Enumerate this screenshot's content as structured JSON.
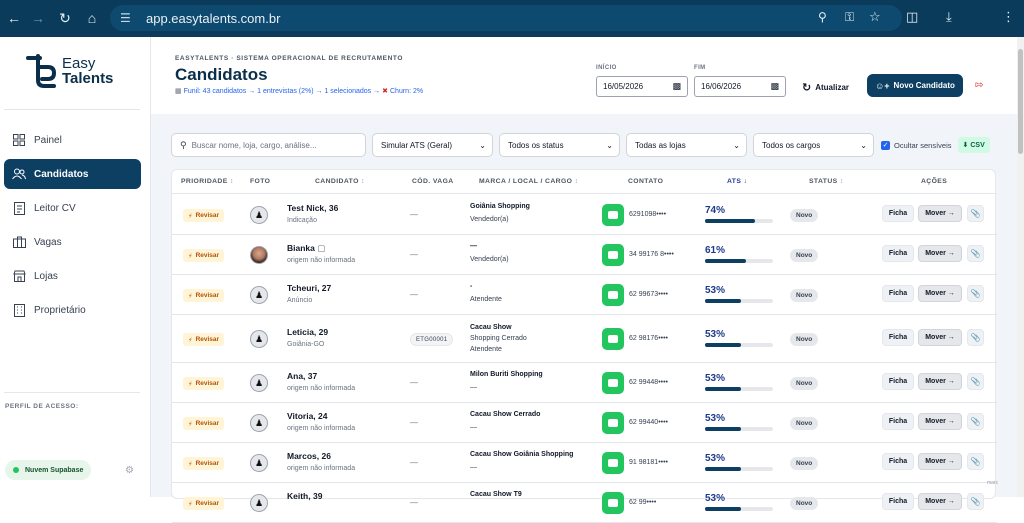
{
  "browser": {
    "url": "app.easytalents.com.br"
  },
  "sidebar": {
    "logo_line1": "Easy",
    "logo_line2": "Talents",
    "items": [
      {
        "label": "Painel",
        "icon": "grid-icon"
      },
      {
        "label": "Candidatos",
        "icon": "users-icon",
        "active": true
      },
      {
        "label": "Leitor CV",
        "icon": "document-icon"
      },
      {
        "label": "Vagas",
        "icon": "briefcase-icon"
      },
      {
        "label": "Lojas",
        "icon": "store-icon"
      },
      {
        "label": "Proprietário",
        "icon": "building-icon"
      }
    ],
    "perfil_label": "PERFIL DE ACESSO:",
    "supabase_label": "Nuvem Supabase"
  },
  "header": {
    "brand_line": "EASYTALENTS · SISTEMA OPERACIONAL DE RECRUTAMENTO",
    "title": "Candidatos",
    "funnel_text": "Funil: 43 candidatos → 1 entrevistas (2%) → 1 selecionados →",
    "churn_text": "Churn: 2%",
    "inicio_label": "INÍCIO",
    "inicio_value": "16/05/2026",
    "fim_label": "FIM",
    "fim_value": "16/06/2026",
    "atualizar_label": "Atualizar",
    "novo_label": "Novo Candidato"
  },
  "filters": {
    "search_placeholder": "Buscar nome, loja, cargo, análise...",
    "ats_select": "Simular ATS (Geral)",
    "status_select": "Todos os status",
    "lojas_select": "Todas as lojas",
    "cargos_select": "Todos os cargos",
    "ocultar_label": "Ocultar sensíveis",
    "csv_label": "⬇ CSV"
  },
  "table": {
    "headers": {
      "prioridade": "PRIORIDADE",
      "foto": "FOTO",
      "candidato": "CANDIDATO",
      "cod_vaga": "CÓD. VAGA",
      "marca": "MARCA / LOCAL / CARGO",
      "contato": "CONTATO",
      "ats": "ATS",
      "status": "STATUS",
      "acoes": "AÇÕES"
    },
    "rows": [
      {
        "prioridade": "Revisar",
        "name": "Test Nick, 36",
        "sub": "Indicação",
        "vaga": "—",
        "loc1": "Goiânia Shopping",
        "loc2": "Vendedor(a)",
        "loc3": "",
        "phone": "6291098••••",
        "ats": "74%",
        "ats_value": 74,
        "status": "Novo"
      },
      {
        "prioridade": "Revisar",
        "name": "Bianka",
        "sub": "origem não informada",
        "vaga": "—",
        "loc1": "—",
        "loc2": "Vendedor(a)",
        "loc3": "",
        "phone": "34 99176 8••••",
        "ats": "61%",
        "ats_value": 61,
        "status": "Novo"
      },
      {
        "prioridade": "Revisar",
        "name": "Tcheuri, 27",
        "sub": "Anúncio",
        "vaga": "—",
        "loc1": "-",
        "loc2": "Atendente",
        "loc3": "",
        "phone": "62 99673••••",
        "ats": "53%",
        "ats_value": 53,
        "status": "Novo"
      },
      {
        "prioridade": "Revisar",
        "name": "Leticia, 29",
        "sub": "Goiânia-GO",
        "vaga": "ETG00001",
        "loc1": "Cacau Show",
        "loc2": "Shopping Cerrado",
        "loc3": "Atendente",
        "phone": "62 98176••••",
        "ats": "53%",
        "ats_value": 53,
        "status": "Novo"
      },
      {
        "prioridade": "Revisar",
        "name": "Ana, 37",
        "sub": "origem não informada",
        "vaga": "—",
        "loc1": "Milon Buriti Shopping",
        "loc2": "—",
        "loc3": "",
        "phone": "62 99448••••",
        "ats": "53%",
        "ats_value": 53,
        "status": "Novo"
      },
      {
        "prioridade": "Revisar",
        "name": "Vitoria, 24",
        "sub": "origem não informada",
        "vaga": "—",
        "loc1": "Cacau Show Cerrado",
        "loc2": "—",
        "loc3": "",
        "phone": "62 99440••••",
        "ats": "53%",
        "ats_value": 53,
        "status": "Novo"
      },
      {
        "prioridade": "Revisar",
        "name": "Marcos, 26",
        "sub": "origem não informada",
        "vaga": "—",
        "loc1": "Cacau Show Goiânia Shopping",
        "loc2": "—",
        "loc3": "",
        "phone": "91 98181••••",
        "ats": "53%",
        "ats_value": 53,
        "status": "Novo"
      },
      {
        "prioridade": "Revisar",
        "name": "Keith, 39",
        "sub": "",
        "vaga": "—",
        "loc1": "Cacau Show T9",
        "loc2": "",
        "loc3": "",
        "phone": "62 99••••",
        "ats": "53%",
        "ats_value": 53,
        "status": "Novo"
      }
    ],
    "ficha_label": "Ficha",
    "mover_label": "Mover →"
  },
  "watermark": "marc"
}
